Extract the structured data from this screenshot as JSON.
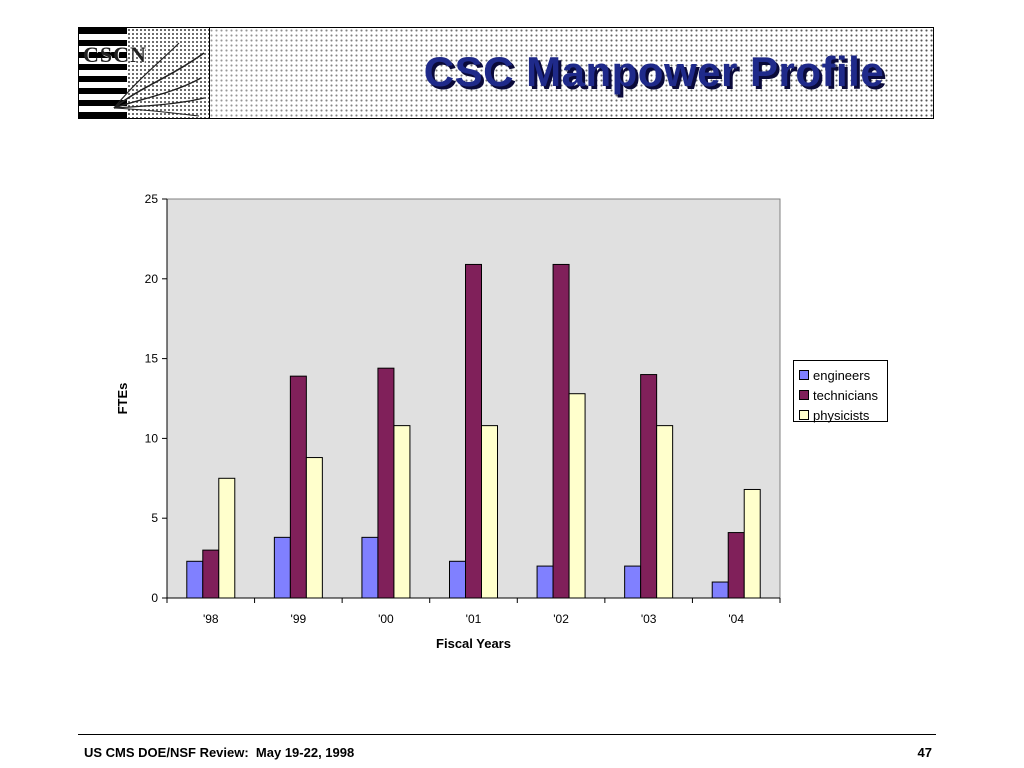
{
  "slide": {
    "title": "CSC Manpower Profile",
    "footer_left": "US CMS DOE/NSF Review:  May 19-22, 1998",
    "page_number": "47",
    "logo_text": "CSCN"
  },
  "colors": {
    "engineers": "#8080ff",
    "technicians": "#80205a",
    "physicists": "#ffffcc",
    "plot_bg": "#e0e0e0",
    "title": "#1f2a8a"
  },
  "chart_data": {
    "type": "bar",
    "title": "",
    "xlabel": "Fiscal Years",
    "ylabel": "FTEs",
    "ylim": [
      0,
      25
    ],
    "yticks": [
      0,
      5,
      10,
      15,
      20,
      25
    ],
    "categories": [
      "'98",
      "'99",
      "'00",
      "'01",
      "'02",
      "'03",
      "'04"
    ],
    "series": [
      {
        "name": "engineers",
        "values": [
          2.3,
          3.8,
          3.8,
          2.3,
          2.0,
          2.0,
          1.0
        ]
      },
      {
        "name": "technicians",
        "values": [
          3.0,
          13.9,
          14.4,
          20.9,
          20.9,
          14.0,
          4.1
        ]
      },
      {
        "name": "physicists",
        "values": [
          7.5,
          8.8,
          10.8,
          10.8,
          12.8,
          10.8,
          6.8
        ]
      }
    ],
    "grid": false,
    "legend": "right"
  }
}
